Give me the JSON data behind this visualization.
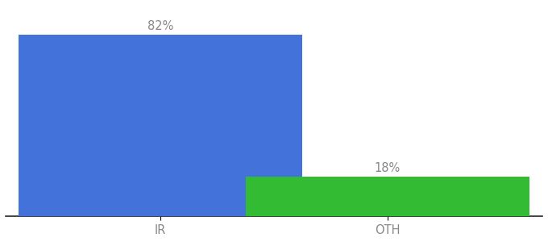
{
  "categories": [
    "IR",
    "OTH"
  ],
  "values": [
    82,
    18
  ],
  "bar_colors": [
    "#4472db",
    "#33bb33"
  ],
  "value_labels": [
    "82%",
    "18%"
  ],
  "background_color": "#ffffff",
  "ylim": [
    0,
    95
  ],
  "bar_width": 0.55,
  "label_fontsize": 10.5,
  "tick_fontsize": 10.5,
  "label_color": "#888888",
  "tick_color": "#888888"
}
